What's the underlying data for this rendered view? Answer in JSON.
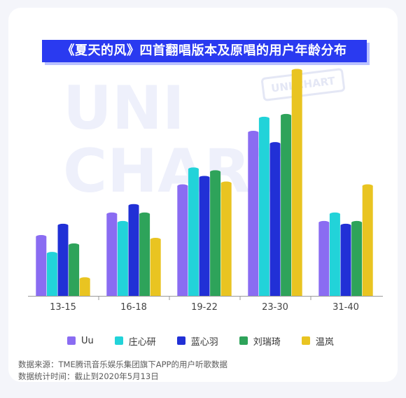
{
  "title": "《夏天的风》四首翻唱版本及原唱的用户年龄分布",
  "watermark": {
    "big": "UNI\nCHART",
    "badge": "UNI CHART"
  },
  "chart_data": {
    "type": "bar",
    "categories": [
      "13-15",
      "16-18",
      "19-22",
      "23-30",
      "31-40"
    ],
    "series": [
      {
        "name": "Uu",
        "color": "#8a6cf2",
        "values": [
          10.5,
          14.5,
          19.5,
          29.0,
          13.0
        ]
      },
      {
        "name": "庄心研",
        "color": "#22d3d9",
        "values": [
          7.5,
          13.0,
          22.5,
          31.5,
          14.5
        ]
      },
      {
        "name": "蓝心羽",
        "color": "#2130d6",
        "values": [
          12.5,
          16.0,
          21.0,
          27.0,
          12.5
        ]
      },
      {
        "name": "刘瑞琦",
        "color": "#2ea35a",
        "values": [
          9.0,
          14.5,
          22.0,
          32.0,
          13.0
        ]
      },
      {
        "name": "温岚",
        "color": "#e9c421",
        "values": [
          3.0,
          10.0,
          20.0,
          40.0,
          19.5
        ]
      }
    ],
    "ylim": [
      0,
      40
    ]
  },
  "legend": [
    "Uu",
    "庄心研",
    "蓝心羽",
    "刘瑞琦",
    "温岚"
  ],
  "source_lines": [
    "数据来源：TME腾讯音乐娱乐集团旗下APP的用户听歌数据",
    "数据统计时间：截止到2020年5月13日"
  ]
}
